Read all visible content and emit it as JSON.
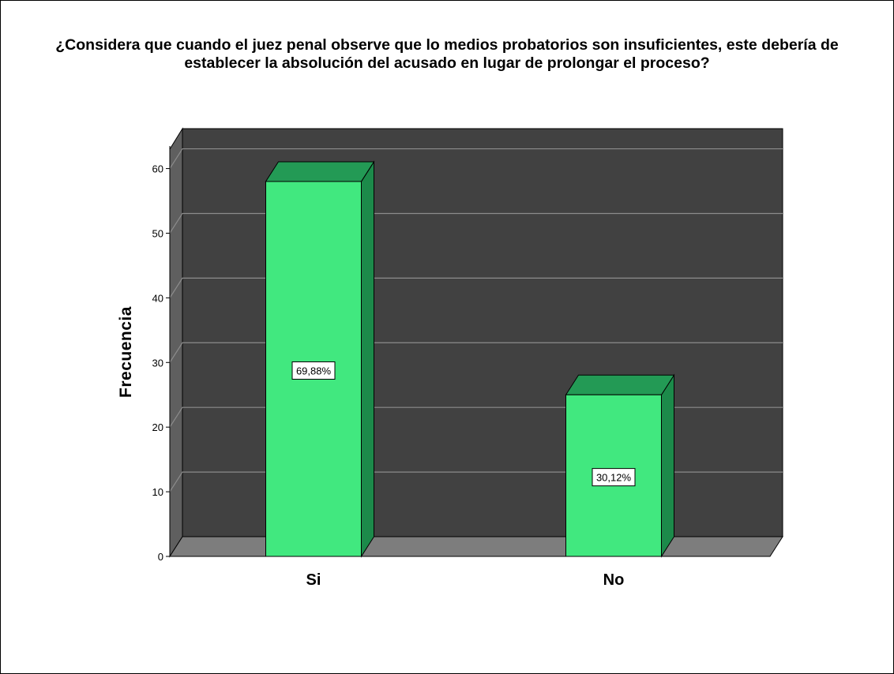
{
  "chart_data": {
    "type": "bar",
    "title": "¿Considera que cuando el juez penal observe que lo medios probatorios son insuficientes, este debería de\nestablecer la absolución del acusado en lugar de prolongar el proceso?",
    "xlabel": "",
    "ylabel": "Frecuencia",
    "categories": [
      "Si",
      "No"
    ],
    "values": [
      58,
      25
    ],
    "data_labels": [
      "69,88%",
      "30,12%"
    ],
    "ylim": [
      0,
      63
    ],
    "yticks": [
      0,
      10,
      20,
      30,
      40,
      50,
      60
    ],
    "grid": true,
    "style": "3d",
    "colors": {
      "bar_front": "#41e87f",
      "bar_top": "#239a55",
      "bar_side": "#1c8a4a",
      "plot_back": "#414141",
      "plot_floor": "#7d7d7d",
      "plot_left_wall": "#5f5f5f",
      "grid": "#8c8c8c"
    }
  }
}
